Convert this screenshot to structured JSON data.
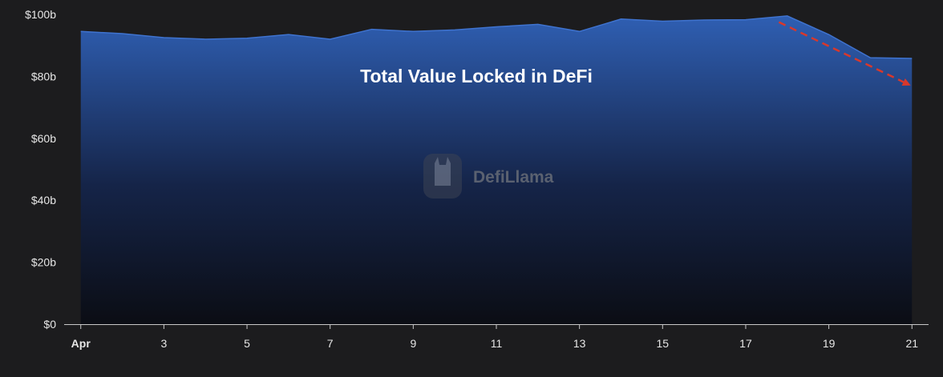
{
  "chart_data": {
    "type": "area",
    "title": "Total Value Locked in DeFi",
    "watermark": "DefiLlama",
    "xlabel": "",
    "ylabel": "",
    "x": [
      "Apr 1",
      "Apr 2",
      "Apr 3",
      "Apr 4",
      "Apr 5",
      "Apr 6",
      "Apr 7",
      "Apr 8",
      "Apr 9",
      "Apr 10",
      "Apr 11",
      "Apr 12",
      "Apr 13",
      "Apr 14",
      "Apr 15",
      "Apr 16",
      "Apr 17",
      "Apr 18",
      "Apr 19",
      "Apr 20",
      "Apr 21"
    ],
    "series": [
      {
        "values": [
          94.5,
          93.8,
          92.5,
          92.0,
          92.3,
          93.5,
          92.0,
          95.2,
          94.5,
          95.0,
          96.0,
          96.8,
          94.5,
          98.5,
          97.8,
          98.2,
          98.3,
          99.5,
          93.5,
          86.0,
          85.8
        ]
      }
    ],
    "x_ticks": [
      {
        "label": "Apr",
        "x": 1,
        "bold": true
      },
      {
        "label": "3",
        "x": 3
      },
      {
        "label": "5",
        "x": 5
      },
      {
        "label": "7",
        "x": 7
      },
      {
        "label": "9",
        "x": 9
      },
      {
        "label": "11",
        "x": 11
      },
      {
        "label": "13",
        "x": 13
      },
      {
        "label": "15",
        "x": 15
      },
      {
        "label": "17",
        "x": 17
      },
      {
        "label": "19",
        "x": 19
      },
      {
        "label": "21",
        "x": 21
      }
    ],
    "y_ticks": [
      {
        "label": "$0",
        "value": 0
      },
      {
        "label": "$20b",
        "value": 20
      },
      {
        "label": "$40b",
        "value": 40
      },
      {
        "label": "$60b",
        "value": 60
      },
      {
        "label": "$80b",
        "value": 80
      },
      {
        "label": "$100b",
        "value": 100
      }
    ],
    "xlim": [
      0.6,
      21.4
    ],
    "ylim": [
      0,
      100
    ],
    "grid": false,
    "legend": "none",
    "annotation": {
      "type": "dashed-arrow",
      "from": {
        "x": 17.8,
        "y": 97.5
      },
      "to": {
        "x": 20.9,
        "y": 77.5
      },
      "color": "#d9382b"
    },
    "colors": {
      "background": "#1c1c1e",
      "area_top": "#2f5fb3",
      "area_bottom": "#0b0d14",
      "text": "#e6e6e6",
      "watermark": "#5a6170"
    }
  }
}
